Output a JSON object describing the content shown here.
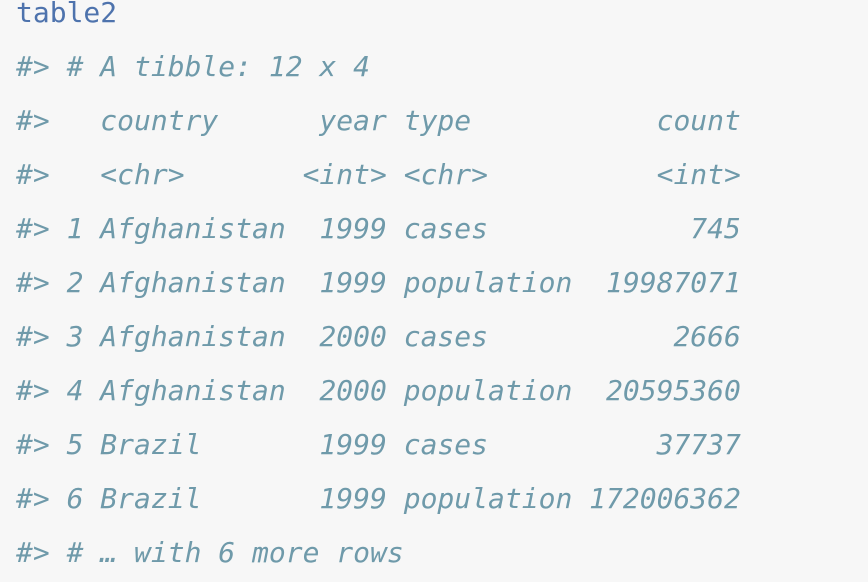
{
  "code": {
    "input": "table2",
    "output_lines": [
      "#> # A tibble: 12 x 4",
      "#>   country      year type           count",
      "#>   <chr>       <int> <chr>          <int>",
      "#> 1 Afghanistan  1999 cases            745",
      "#> 2 Afghanistan  1999 population  19987071",
      "#> 3 Afghanistan  2000 cases           2666",
      "#> 4 Afghanistan  2000 population  20595360",
      "#> 5 Brazil       1999 cases          37737",
      "#> 6 Brazil       1999 population 172006362",
      "#> # … with 6 more rows"
    ]
  }
}
